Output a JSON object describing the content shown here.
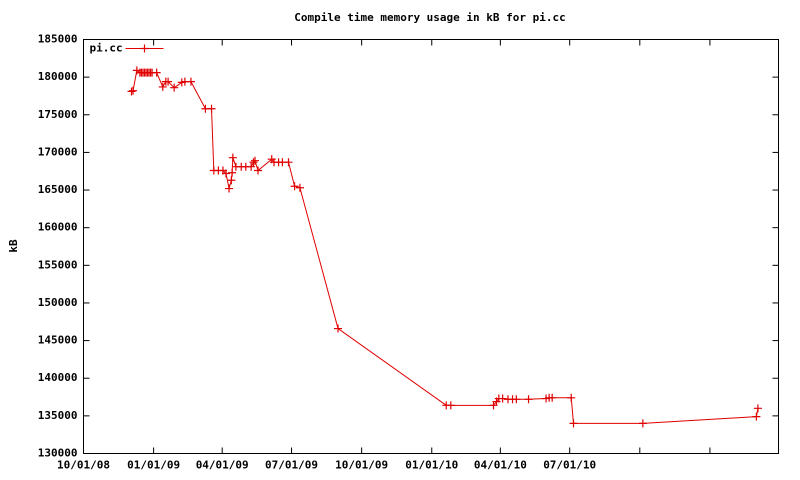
{
  "chart_data": {
    "type": "line",
    "title": "Compile time memory usage in kB for pi.cc",
    "y_label": "kB",
    "x": [
      "2008-12-03",
      "2008-12-05",
      "2008-12-10",
      "2008-12-14",
      "2008-12-16",
      "2008-12-18",
      "2008-12-20",
      "2008-12-22",
      "2008-12-24",
      "2008-12-26",
      "2008-12-28",
      "2008-12-30",
      "2009-01-05",
      "2009-01-13",
      "2009-01-17",
      "2009-01-20",
      "2009-01-28",
      "2009-02-07",
      "2009-02-11",
      "2009-02-19",
      "2009-03-10",
      "2009-03-18",
      "2009-03-21",
      "2009-03-27",
      "2009-04-02",
      "2009-04-06",
      "2009-04-10",
      "2009-04-13",
      "2009-04-14",
      "2009-04-15",
      "2009-04-19",
      "2009-04-26",
      "2009-05-02",
      "2009-05-09",
      "2009-05-12",
      "2009-05-14",
      "2009-05-18",
      "2009-06-05",
      "2009-06-08",
      "2009-06-14",
      "2009-06-19",
      "2009-06-27",
      "2009-07-05",
      "2009-07-12",
      "2009-08-31",
      "2010-01-20",
      "2010-01-26",
      "2010-03-23",
      "2010-03-27",
      "2010-03-30",
      "2010-04-04",
      "2010-04-11",
      "2010-04-17",
      "2010-04-22",
      "2010-05-08",
      "2010-05-31",
      "2010-06-04",
      "2010-06-08",
      "2010-07-03",
      "2010-07-06",
      "2010-10-05",
      "2011-03-03",
      "2011-03-05"
    ],
    "series": [
      {
        "name": "pi.cc",
        "color": "#e00000",
        "values": [
          178100,
          178200,
          180900,
          180600,
          180600,
          180600,
          180600,
          180600,
          180600,
          180600,
          180600,
          180600,
          180600,
          178700,
          179400,
          179400,
          178600,
          179300,
          179400,
          179400,
          175800,
          175800,
          167600,
          167600,
          167600,
          167200,
          165200,
          166300,
          167300,
          169300,
          168100,
          168100,
          168100,
          168100,
          168700,
          168900,
          167600,
          169100,
          168700,
          168700,
          168700,
          168700,
          165500,
          165300,
          146600,
          136400,
          136400,
          136400,
          136900,
          137300,
          137300,
          137200,
          137200,
          137200,
          137200,
          137300,
          137400,
          137400,
          137400,
          134000,
          134000,
          134900,
          136000
        ]
      }
    ],
    "xlim": [
      "2008-10-01",
      "2011-04-01"
    ],
    "xticks": [
      {
        "value": "2008-10-01",
        "label": "10/01/08"
      },
      {
        "value": "2009-01-01",
        "label": "01/01/09"
      },
      {
        "value": "2009-04-01",
        "label": "04/01/09"
      },
      {
        "value": "2009-07-01",
        "label": "07/01/09"
      },
      {
        "value": "2009-10-01",
        "label": "10/01/09"
      },
      {
        "value": "2010-01-01",
        "label": "01/01/10"
      },
      {
        "value": "2010-04-01",
        "label": "04/01/10"
      },
      {
        "value": "2010-07-01",
        "label": "07/01/10"
      },
      {
        "value": "2010-10-01",
        "label": null
      },
      {
        "value": "2011-01-01",
        "label": null
      }
    ],
    "ylim": [
      130000,
      185000
    ],
    "yticks": [
      130000,
      135000,
      140000,
      145000,
      150000,
      155000,
      160000,
      165000,
      170000,
      175000,
      180000,
      185000
    ],
    "grid": false,
    "legend": "top-left"
  }
}
